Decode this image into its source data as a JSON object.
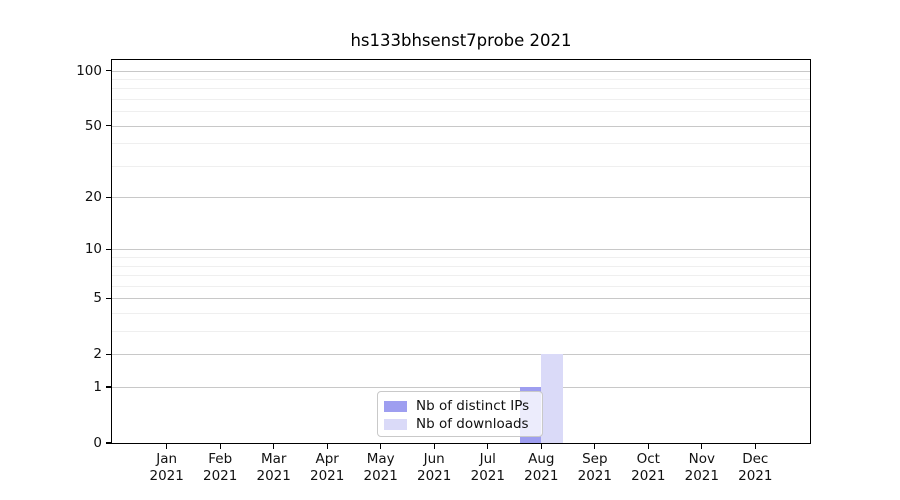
{
  "chart_data": {
    "type": "bar",
    "title": "hs133bhsenst7probe 2021",
    "x_categories": [
      "Jan 2021",
      "Feb 2021",
      "Mar 2021",
      "Apr 2021",
      "May 2021",
      "Jun 2021",
      "Jul 2021",
      "Aug 2021",
      "Sep 2021",
      "Oct 2021",
      "Nov 2021",
      "Dec 2021"
    ],
    "series": [
      {
        "name": "Nb of distinct IPs",
        "color": "#9e9ef0",
        "values": [
          0,
          0,
          0,
          0,
          0,
          0,
          0,
          1,
          0,
          0,
          0,
          0
        ]
      },
      {
        "name": "Nb of downloads",
        "color": "#dadaf8",
        "values": [
          0,
          0,
          0,
          0,
          0,
          0,
          0,
          2,
          0,
          0,
          0,
          0
        ]
      }
    ],
    "yscale": "log1p",
    "ylim": [
      0,
      114
    ],
    "y_major_ticks": [
      0,
      1,
      2,
      5,
      10,
      20,
      50,
      100
    ],
    "y_minor_ticks": [
      3,
      4,
      6,
      7,
      8,
      9,
      30,
      40,
      60,
      70,
      80,
      90
    ],
    "grid": {
      "which": "both",
      "orientation": "horizontal",
      "major_color": "#c8c8c8",
      "minor_color": "#efefef"
    },
    "legend": {
      "location": "inside-bottom-center"
    }
  }
}
